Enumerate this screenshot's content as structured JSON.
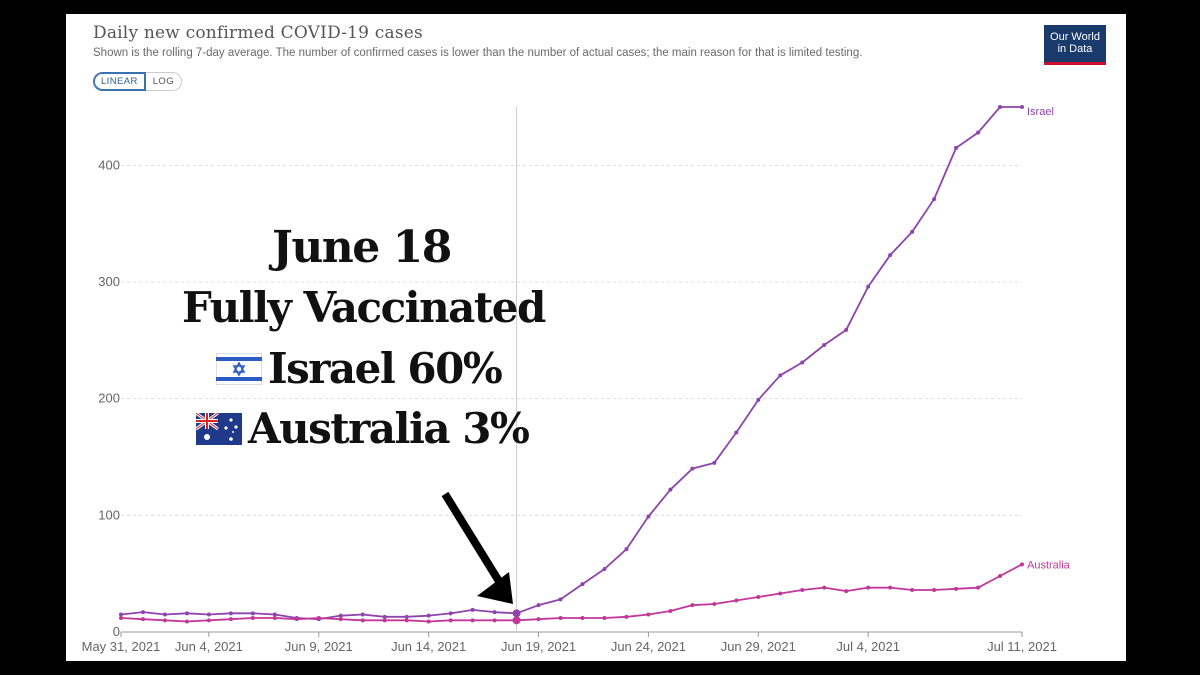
{
  "header": {
    "title": "Daily new confirmed COVID-19 cases",
    "subtitle": "Shown is the rolling 7-day average. The number of confirmed cases is lower than the number of actual cases; the main reason for that is limited testing.",
    "logo_line1": "Our World",
    "logo_line2": "in Data",
    "scale_options": [
      "LINEAR",
      "LOG"
    ],
    "scale_selected": "LINEAR"
  },
  "annotation": {
    "line1": "June 18",
    "line2": "Fully Vaccinated",
    "line3": "Israel 60%",
    "line4": "Australia 3%",
    "flag1": "israel-flag",
    "flag2": "australia-flag",
    "arrow": "arrow-down-right"
  },
  "colors": {
    "israel": "#8e44ad",
    "australia": "#c2379a",
    "grid": "#dddddd",
    "axis_text": "#666666"
  },
  "chart_data": {
    "type": "line",
    "title": "Daily new confirmed COVID-19 cases",
    "subtitle": "Shown is the rolling 7-day average. The number of confirmed cases is lower than the number of actual cases; the main reason for that is limited testing.",
    "ylim": [
      0,
      450
    ],
    "yticks": [
      0,
      100,
      200,
      300,
      400
    ],
    "x_tick_labels": [
      "May 31, 2021",
      "Jun 4, 2021",
      "Jun 9, 2021",
      "Jun 14, 2021",
      "Jun 19, 2021",
      "Jun 24, 2021",
      "Jun 29, 2021",
      "Jul 4, 2021",
      "Jul 11, 2021"
    ],
    "x_tick_dates": [
      "2021-05-31",
      "2021-06-04",
      "2021-06-09",
      "2021-06-14",
      "2021-06-19",
      "2021-06-24",
      "2021-06-29",
      "2021-07-04",
      "2021-07-11"
    ],
    "highlight_date": "2021-06-18",
    "dates": [
      "2021-05-31",
      "2021-06-01",
      "2021-06-02",
      "2021-06-03",
      "2021-06-04",
      "2021-06-05",
      "2021-06-06",
      "2021-06-07",
      "2021-06-08",
      "2021-06-09",
      "2021-06-10",
      "2021-06-11",
      "2021-06-12",
      "2021-06-13",
      "2021-06-14",
      "2021-06-15",
      "2021-06-16",
      "2021-06-17",
      "2021-06-18",
      "2021-06-19",
      "2021-06-20",
      "2021-06-21",
      "2021-06-22",
      "2021-06-23",
      "2021-06-24",
      "2021-06-25",
      "2021-06-26",
      "2021-06-27",
      "2021-06-28",
      "2021-06-29",
      "2021-06-30",
      "2021-07-01",
      "2021-07-02",
      "2021-07-03",
      "2021-07-04",
      "2021-07-05",
      "2021-07-06",
      "2021-07-07",
      "2021-07-08",
      "2021-07-09",
      "2021-07-10",
      "2021-07-11"
    ],
    "series": [
      {
        "name": "Israel",
        "values": [
          15,
          17,
          15,
          16,
          15,
          16,
          16,
          15,
          12,
          11,
          14,
          15,
          13,
          13,
          14,
          16,
          19,
          17,
          16,
          23,
          28,
          41,
          54,
          71,
          99,
          122,
          140,
          145,
          171,
          199,
          220,
          231,
          246,
          259,
          296,
          323,
          343,
          371,
          415,
          428,
          450,
          450
        ]
      },
      {
        "name": "Australia",
        "values": [
          12,
          11,
          10,
          9,
          10,
          11,
          12,
          12,
          11,
          12,
          11,
          10,
          10,
          10,
          9,
          10,
          10,
          10,
          10,
          11,
          12,
          12,
          12,
          13,
          15,
          18,
          23,
          24,
          27,
          30,
          33,
          36,
          38,
          35,
          38,
          38,
          36,
          36,
          37,
          38,
          48,
          58
        ]
      }
    ]
  }
}
